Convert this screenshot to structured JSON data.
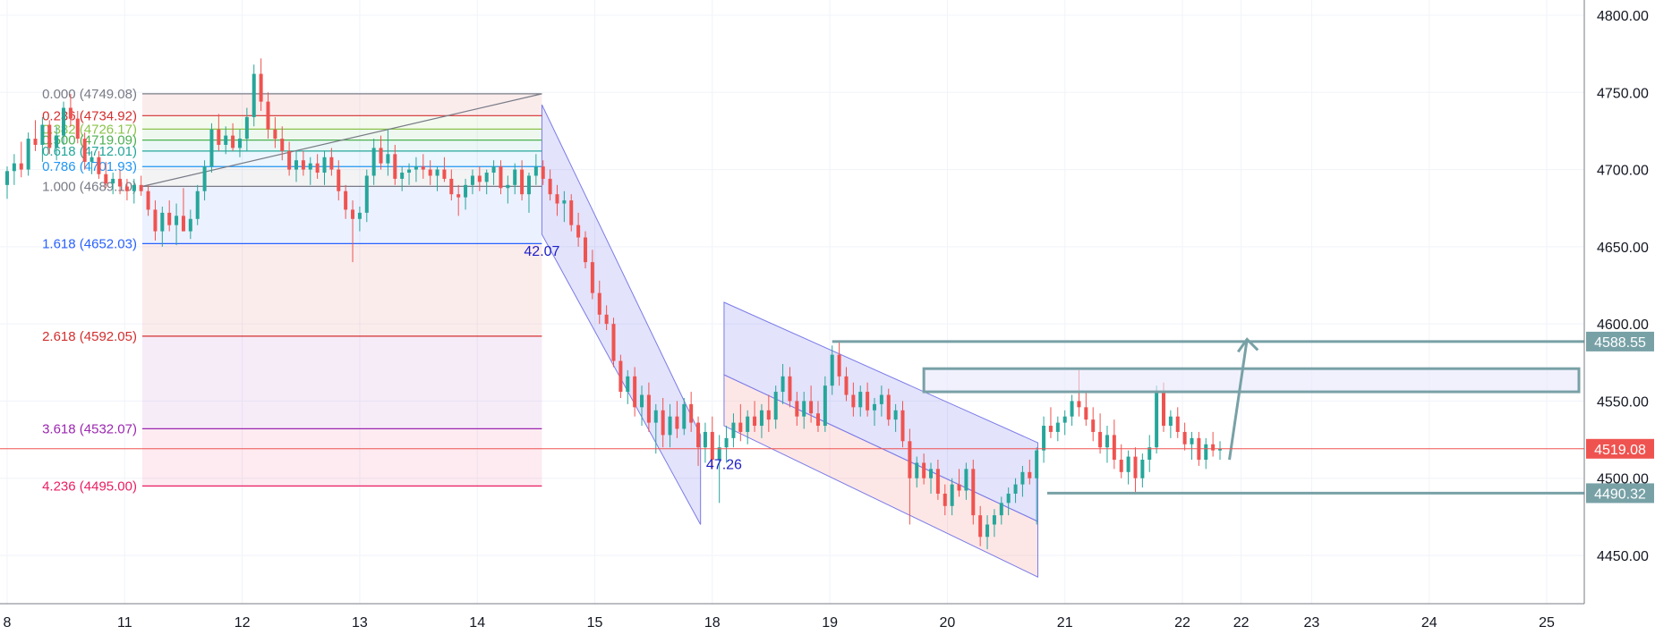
{
  "chart_data": {
    "type": "candlestick",
    "title": "",
    "y_axis": {
      "min": 4420,
      "max": 4810,
      "ticks": [
        "4800.00",
        "4750.00",
        "4700.00",
        "4650.00",
        "4600.00",
        "4550.00",
        "4500.00",
        "4450.00"
      ],
      "tick_values": [
        4800,
        4750,
        4700,
        4650,
        4600,
        4550,
        4500,
        4450
      ],
      "position": "right"
    },
    "x_axis": {
      "ticks": [
        "8",
        "11",
        "12",
        "13",
        "14",
        "15",
        "18",
        "19",
        "20",
        "21",
        "22",
        "22",
        "23",
        "24",
        "25"
      ],
      "tick_sessions": [
        0,
        1,
        2,
        3,
        4,
        5,
        6,
        7,
        8,
        9,
        10,
        10.5,
        11.1,
        12.1,
        13.1
      ]
    },
    "grid": true,
    "current_price": {
      "label": "4519.08",
      "value": 4519.08,
      "color": "#ef5350"
    },
    "fibonacci": {
      "start_session": 1.15,
      "end_session": 4.55,
      "levels": [
        {
          "label": "0.000 (4749.08)",
          "value": 4749.08,
          "color": "#787b86"
        },
        {
          "label": "0.236 (4734.92)",
          "value": 4734.92,
          "color": "#d32f2f"
        },
        {
          "label": "0.382 (4726.17)",
          "value": 4726.17,
          "color": "#8bc34a"
        },
        {
          "label": "0.500 (4719.09)",
          "value": 4719.09,
          "color": "#4caf50"
        },
        {
          "label": "0.618 (4712.01)",
          "value": 4712.01,
          "color": "#26a69a"
        },
        {
          "label": "0.786 (4701.93)",
          "value": 4701.93,
          "color": "#2196f3"
        },
        {
          "label": "1.000 (4689.10)",
          "value": 4689.1,
          "color": "#787b86"
        },
        {
          "label": "1.618 (4652.03)",
          "value": 4652.03,
          "color": "#2962ff"
        },
        {
          "label": "2.618 (4592.05)",
          "value": 4592.05,
          "color": "#d32f2f"
        },
        {
          "label": "3.618 (4532.07)",
          "value": 4532.07,
          "color": "#9c27b0"
        },
        {
          "label": "4.236 (4495.00)",
          "value": 4495.0,
          "color": "#e91e63"
        }
      ]
    },
    "price_tags": [
      {
        "label": "4588.55",
        "value": 4588.55,
        "color": "#78a1a6"
      },
      {
        "label": "4490.32",
        "value": 4490.32,
        "color": "#78a1a6"
      }
    ],
    "annotations": [
      {
        "label": "42.07",
        "session": 4.55,
        "value": 4644
      },
      {
        "label": "47.26",
        "session": 6.1,
        "value": 4506
      }
    ],
    "zone": {
      "from_value": 4556,
      "to_value": 4571,
      "start_session": 7.8
    },
    "candles": [
      [
        0.0,
        4690,
        4702,
        4681,
        4699
      ],
      [
        0.06,
        4699,
        4710,
        4690,
        4704
      ],
      [
        0.12,
        4704,
        4718,
        4695,
        4700
      ],
      [
        0.18,
        4700,
        4724,
        4696,
        4720
      ],
      [
        0.24,
        4720,
        4732,
        4712,
        4716
      ],
      [
        0.3,
        4716,
        4734,
        4705,
        4729
      ],
      [
        0.36,
        4729,
        4732,
        4710,
        4714
      ],
      [
        0.42,
        4714,
        4728,
        4706,
        4722
      ],
      [
        0.48,
        4722,
        4744,
        4716,
        4740
      ],
      [
        0.54,
        4740,
        4749,
        4728,
        4733
      ],
      [
        0.6,
        4733,
        4738,
        4717,
        4720
      ],
      [
        0.66,
        4720,
        4724,
        4700,
        4705
      ],
      [
        0.72,
        4705,
        4712,
        4697,
        4708
      ],
      [
        0.78,
        4708,
        4712,
        4694,
        4697
      ],
      [
        0.84,
        4697,
        4705,
        4688,
        4691
      ],
      [
        0.9,
        4691,
        4698,
        4684,
        4694
      ],
      [
        0.96,
        4694,
        4700,
        4684,
        4689
      ],
      [
        1.02,
        4689,
        4694,
        4680,
        4686
      ],
      [
        1.08,
        4686,
        4694,
        4678,
        4690
      ],
      [
        1.14,
        4690,
        4696,
        4683,
        4686
      ],
      [
        1.2,
        4686,
        4690,
        4670,
        4674
      ],
      [
        1.26,
        4674,
        4680,
        4654,
        4660
      ],
      [
        1.32,
        4660,
        4676,
        4650,
        4672
      ],
      [
        1.38,
        4672,
        4680,
        4660,
        4664
      ],
      [
        1.44,
        4664,
        4678,
        4651,
        4670
      ],
      [
        1.5,
        4670,
        4688,
        4660,
        4660
      ],
      [
        1.56,
        4660,
        4674,
        4655,
        4668
      ],
      [
        1.62,
        4668,
        4690,
        4664,
        4686
      ],
      [
        1.68,
        4686,
        4706,
        4680,
        4702
      ],
      [
        1.74,
        4702,
        4730,
        4698,
        4726
      ],
      [
        1.8,
        4726,
        4736,
        4712,
        4716
      ],
      [
        1.86,
        4716,
        4728,
        4710,
        4722
      ],
      [
        1.92,
        4722,
        4730,
        4712,
        4714
      ],
      [
        1.98,
        4714,
        4726,
        4708,
        4720
      ],
      [
        2.04,
        4720,
        4740,
        4712,
        4734
      ],
      [
        2.1,
        4734,
        4768,
        4728,
        4762
      ],
      [
        2.16,
        4762,
        4772,
        4738,
        4744
      ],
      [
        2.22,
        4744,
        4750,
        4720,
        4726
      ],
      [
        2.28,
        4726,
        4734,
        4714,
        4720
      ],
      [
        2.34,
        4720,
        4728,
        4706,
        4712
      ],
      [
        2.4,
        4712,
        4718,
        4696,
        4700
      ],
      [
        2.46,
        4700,
        4712,
        4692,
        4706
      ],
      [
        2.52,
        4706,
        4712,
        4696,
        4700
      ],
      [
        2.58,
        4700,
        4708,
        4690,
        4704
      ],
      [
        2.64,
        4704,
        4710,
        4694,
        4698
      ],
      [
        2.7,
        4698,
        4712,
        4690,
        4708
      ],
      [
        2.76,
        4708,
        4714,
        4696,
        4700
      ],
      [
        2.82,
        4700,
        4706,
        4680,
        4686
      ],
      [
        2.88,
        4686,
        4690,
        4668,
        4674
      ],
      [
        2.94,
        4674,
        4680,
        4640,
        4668
      ],
      [
        3.0,
        4668,
        4676,
        4660,
        4672
      ],
      [
        3.06,
        4672,
        4700,
        4666,
        4696
      ],
      [
        3.12,
        4696,
        4720,
        4690,
        4714
      ],
      [
        3.18,
        4714,
        4722,
        4700,
        4704
      ],
      [
        3.24,
        4704,
        4726,
        4696,
        4710
      ],
      [
        3.3,
        4710,
        4716,
        4690,
        4694
      ],
      [
        3.36,
        4694,
        4702,
        4686,
        4698
      ],
      [
        3.42,
        4698,
        4704,
        4690,
        4700
      ],
      [
        3.48,
        4700,
        4708,
        4692,
        4702
      ],
      [
        3.54,
        4702,
        4710,
        4694,
        4700
      ],
      [
        3.6,
        4700,
        4706,
        4690,
        4696
      ],
      [
        3.66,
        4696,
        4702,
        4686,
        4700
      ],
      [
        3.72,
        4700,
        4708,
        4692,
        4694
      ],
      [
        3.78,
        4694,
        4700,
        4680,
        4684
      ],
      [
        3.84,
        4684,
        4690,
        4670,
        4682
      ],
      [
        3.9,
        4682,
        4694,
        4674,
        4690
      ],
      [
        3.96,
        4690,
        4700,
        4684,
        4696
      ],
      [
        4.02,
        4696,
        4702,
        4686,
        4692
      ],
      [
        4.08,
        4692,
        4700,
        4684,
        4698
      ],
      [
        4.14,
        4698,
        4706,
        4690,
        4702
      ],
      [
        4.2,
        4702,
        4706,
        4684,
        4688
      ],
      [
        4.26,
        4688,
        4696,
        4678,
        4690
      ],
      [
        4.32,
        4690,
        4704,
        4684,
        4700
      ],
      [
        4.38,
        4700,
        4706,
        4680,
        4684
      ],
      [
        4.44,
        4684,
        4698,
        4672,
        4696
      ],
      [
        4.5,
        4696,
        4710,
        4690,
        4702
      ],
      [
        4.56,
        4702,
        4706,
        4690,
        4694
      ],
      [
        4.62,
        4694,
        4700,
        4680,
        4684
      ],
      [
        4.68,
        4684,
        4690,
        4670,
        4678
      ],
      [
        4.74,
        4678,
        4686,
        4666,
        4680
      ],
      [
        4.8,
        4680,
        4684,
        4660,
        4664
      ],
      [
        4.86,
        4664,
        4672,
        4650,
        4656
      ],
      [
        4.92,
        4656,
        4660,
        4636,
        4640
      ],
      [
        4.98,
        4640,
        4648,
        4616,
        4620
      ],
      [
        5.04,
        4620,
        4628,
        4600,
        4606
      ],
      [
        5.1,
        4606,
        4612,
        4596,
        4600
      ],
      [
        5.16,
        4600,
        4604,
        4572,
        4576
      ],
      [
        5.22,
        4576,
        4580,
        4552,
        4556
      ],
      [
        5.28,
        4556,
        4570,
        4548,
        4566
      ],
      [
        5.34,
        4566,
        4572,
        4540,
        4546
      ],
      [
        5.4,
        4546,
        4560,
        4534,
        4554
      ],
      [
        5.46,
        4554,
        4562,
        4530,
        4536
      ],
      [
        5.52,
        4536,
        4548,
        4516,
        4544
      ],
      [
        5.58,
        4544,
        4552,
        4520,
        4528
      ],
      [
        5.64,
        4528,
        4548,
        4520,
        4540
      ],
      [
        5.7,
        4540,
        4550,
        4526,
        4532
      ],
      [
        5.76,
        4532,
        4552,
        4528,
        4548
      ],
      [
        5.82,
        4548,
        4556,
        4530,
        4536
      ],
      [
        5.88,
        4536,
        4540,
        4508,
        4520
      ],
      [
        5.94,
        4520,
        4536,
        4510,
        4530
      ],
      [
        6.0,
        4530,
        4540,
        4506,
        4512
      ],
      [
        6.06,
        4512,
        4528,
        4484,
        4520
      ],
      [
        6.12,
        4520,
        4534,
        4510,
        4526
      ],
      [
        6.18,
        4526,
        4542,
        4520,
        4536
      ],
      [
        6.24,
        4536,
        4548,
        4524,
        4530
      ],
      [
        6.3,
        4530,
        4544,
        4522,
        4540
      ],
      [
        6.36,
        4540,
        4550,
        4530,
        4534
      ],
      [
        6.42,
        4534,
        4548,
        4526,
        4544
      ],
      [
        6.48,
        4544,
        4554,
        4530,
        4538
      ],
      [
        6.54,
        4538,
        4560,
        4532,
        4556
      ],
      [
        6.6,
        4556,
        4574,
        4548,
        4566
      ],
      [
        6.66,
        4566,
        4572,
        4546,
        4550
      ],
      [
        6.72,
        4550,
        4556,
        4534,
        4540
      ],
      [
        6.78,
        4540,
        4556,
        4532,
        4550
      ],
      [
        6.84,
        4550,
        4560,
        4536,
        4542
      ],
      [
        6.9,
        4542,
        4550,
        4530,
        4534
      ],
      [
        6.96,
        4534,
        4566,
        4530,
        4560
      ],
      [
        7.02,
        4560,
        4586,
        4554,
        4580
      ],
      [
        7.08,
        4580,
        4588,
        4560,
        4566
      ],
      [
        7.14,
        4566,
        4572,
        4550,
        4554
      ],
      [
        7.2,
        4554,
        4562,
        4540,
        4546
      ],
      [
        7.26,
        4546,
        4560,
        4540,
        4556
      ],
      [
        7.32,
        4556,
        4562,
        4540,
        4544
      ],
      [
        7.38,
        4544,
        4552,
        4534,
        4548
      ],
      [
        7.44,
        4548,
        4560,
        4540,
        4554
      ],
      [
        7.5,
        4554,
        4558,
        4534,
        4538
      ],
      [
        7.56,
        4538,
        4548,
        4530,
        4544
      ],
      [
        7.62,
        4544,
        4550,
        4520,
        4524
      ],
      [
        7.68,
        4524,
        4532,
        4470,
        4500
      ],
      [
        7.74,
        4500,
        4514,
        4494,
        4510
      ],
      [
        7.8,
        4510,
        4516,
        4496,
        4500
      ],
      [
        7.86,
        4500,
        4510,
        4490,
        4506
      ],
      [
        7.92,
        4506,
        4512,
        4486,
        4490
      ],
      [
        7.98,
        4490,
        4496,
        4476,
        4482
      ],
      [
        8.04,
        4482,
        4500,
        4476,
        4496
      ],
      [
        8.1,
        4496,
        4506,
        4488,
        4492
      ],
      [
        8.16,
        4492,
        4510,
        4486,
        4506
      ],
      [
        8.22,
        4506,
        4512,
        4470,
        4476
      ],
      [
        8.28,
        4476,
        4482,
        4456,
        4462
      ],
      [
        8.34,
        4462,
        4476,
        4454,
        4470
      ],
      [
        8.4,
        4470,
        4480,
        4462,
        4476
      ],
      [
        8.46,
        4476,
        4488,
        4470,
        4484
      ],
      [
        8.52,
        4484,
        4494,
        4476,
        4490
      ],
      [
        8.58,
        4490,
        4500,
        4484,
        4496
      ],
      [
        8.64,
        4496,
        4508,
        4488,
        4504
      ],
      [
        8.7,
        4504,
        4512,
        4496,
        4500
      ],
      [
        8.76,
        4500,
        4520,
        4470,
        4518
      ],
      [
        8.82,
        4518,
        4540,
        4510,
        4534
      ],
      [
        8.88,
        4534,
        4546,
        4526,
        4530
      ],
      [
        8.94,
        4530,
        4540,
        4524,
        4536
      ],
      [
        9.0,
        4536,
        4544,
        4528,
        4540
      ],
      [
        9.06,
        4540,
        4554,
        4534,
        4550
      ],
      [
        9.12,
        4550,
        4570,
        4540,
        4546
      ],
      [
        9.18,
        4546,
        4556,
        4534,
        4538
      ],
      [
        9.24,
        4538,
        4546,
        4524,
        4530
      ],
      [
        9.3,
        4530,
        4542,
        4516,
        4520
      ],
      [
        9.36,
        4520,
        4534,
        4510,
        4528
      ],
      [
        9.42,
        4528,
        4538,
        4506,
        4512
      ],
      [
        9.48,
        4512,
        4522,
        4500,
        4504
      ],
      [
        9.54,
        4504,
        4518,
        4496,
        4514
      ],
      [
        9.6,
        4514,
        4520,
        4490,
        4500
      ],
      [
        9.66,
        4500,
        4516,
        4494,
        4512
      ],
      [
        9.72,
        4512,
        4528,
        4504,
        4520
      ],
      [
        9.78,
        4520,
        4560,
        4516,
        4556
      ],
      [
        9.84,
        4556,
        4562,
        4530,
        4534
      ],
      [
        9.9,
        4534,
        4544,
        4526,
        4540
      ],
      [
        9.96,
        4540,
        4546,
        4526,
        4530
      ],
      [
        10.02,
        4530,
        4536,
        4518,
        4522
      ],
      [
        10.08,
        4522,
        4530,
        4512,
        4526
      ],
      [
        10.14,
        4526,
        4530,
        4508,
        4512
      ],
      [
        10.2,
        4512,
        4526,
        4506,
        4522
      ],
      [
        10.26,
        4522,
        4530,
        4514,
        4518
      ],
      [
        10.32,
        4518,
        4524,
        4512,
        4519
      ]
    ]
  }
}
